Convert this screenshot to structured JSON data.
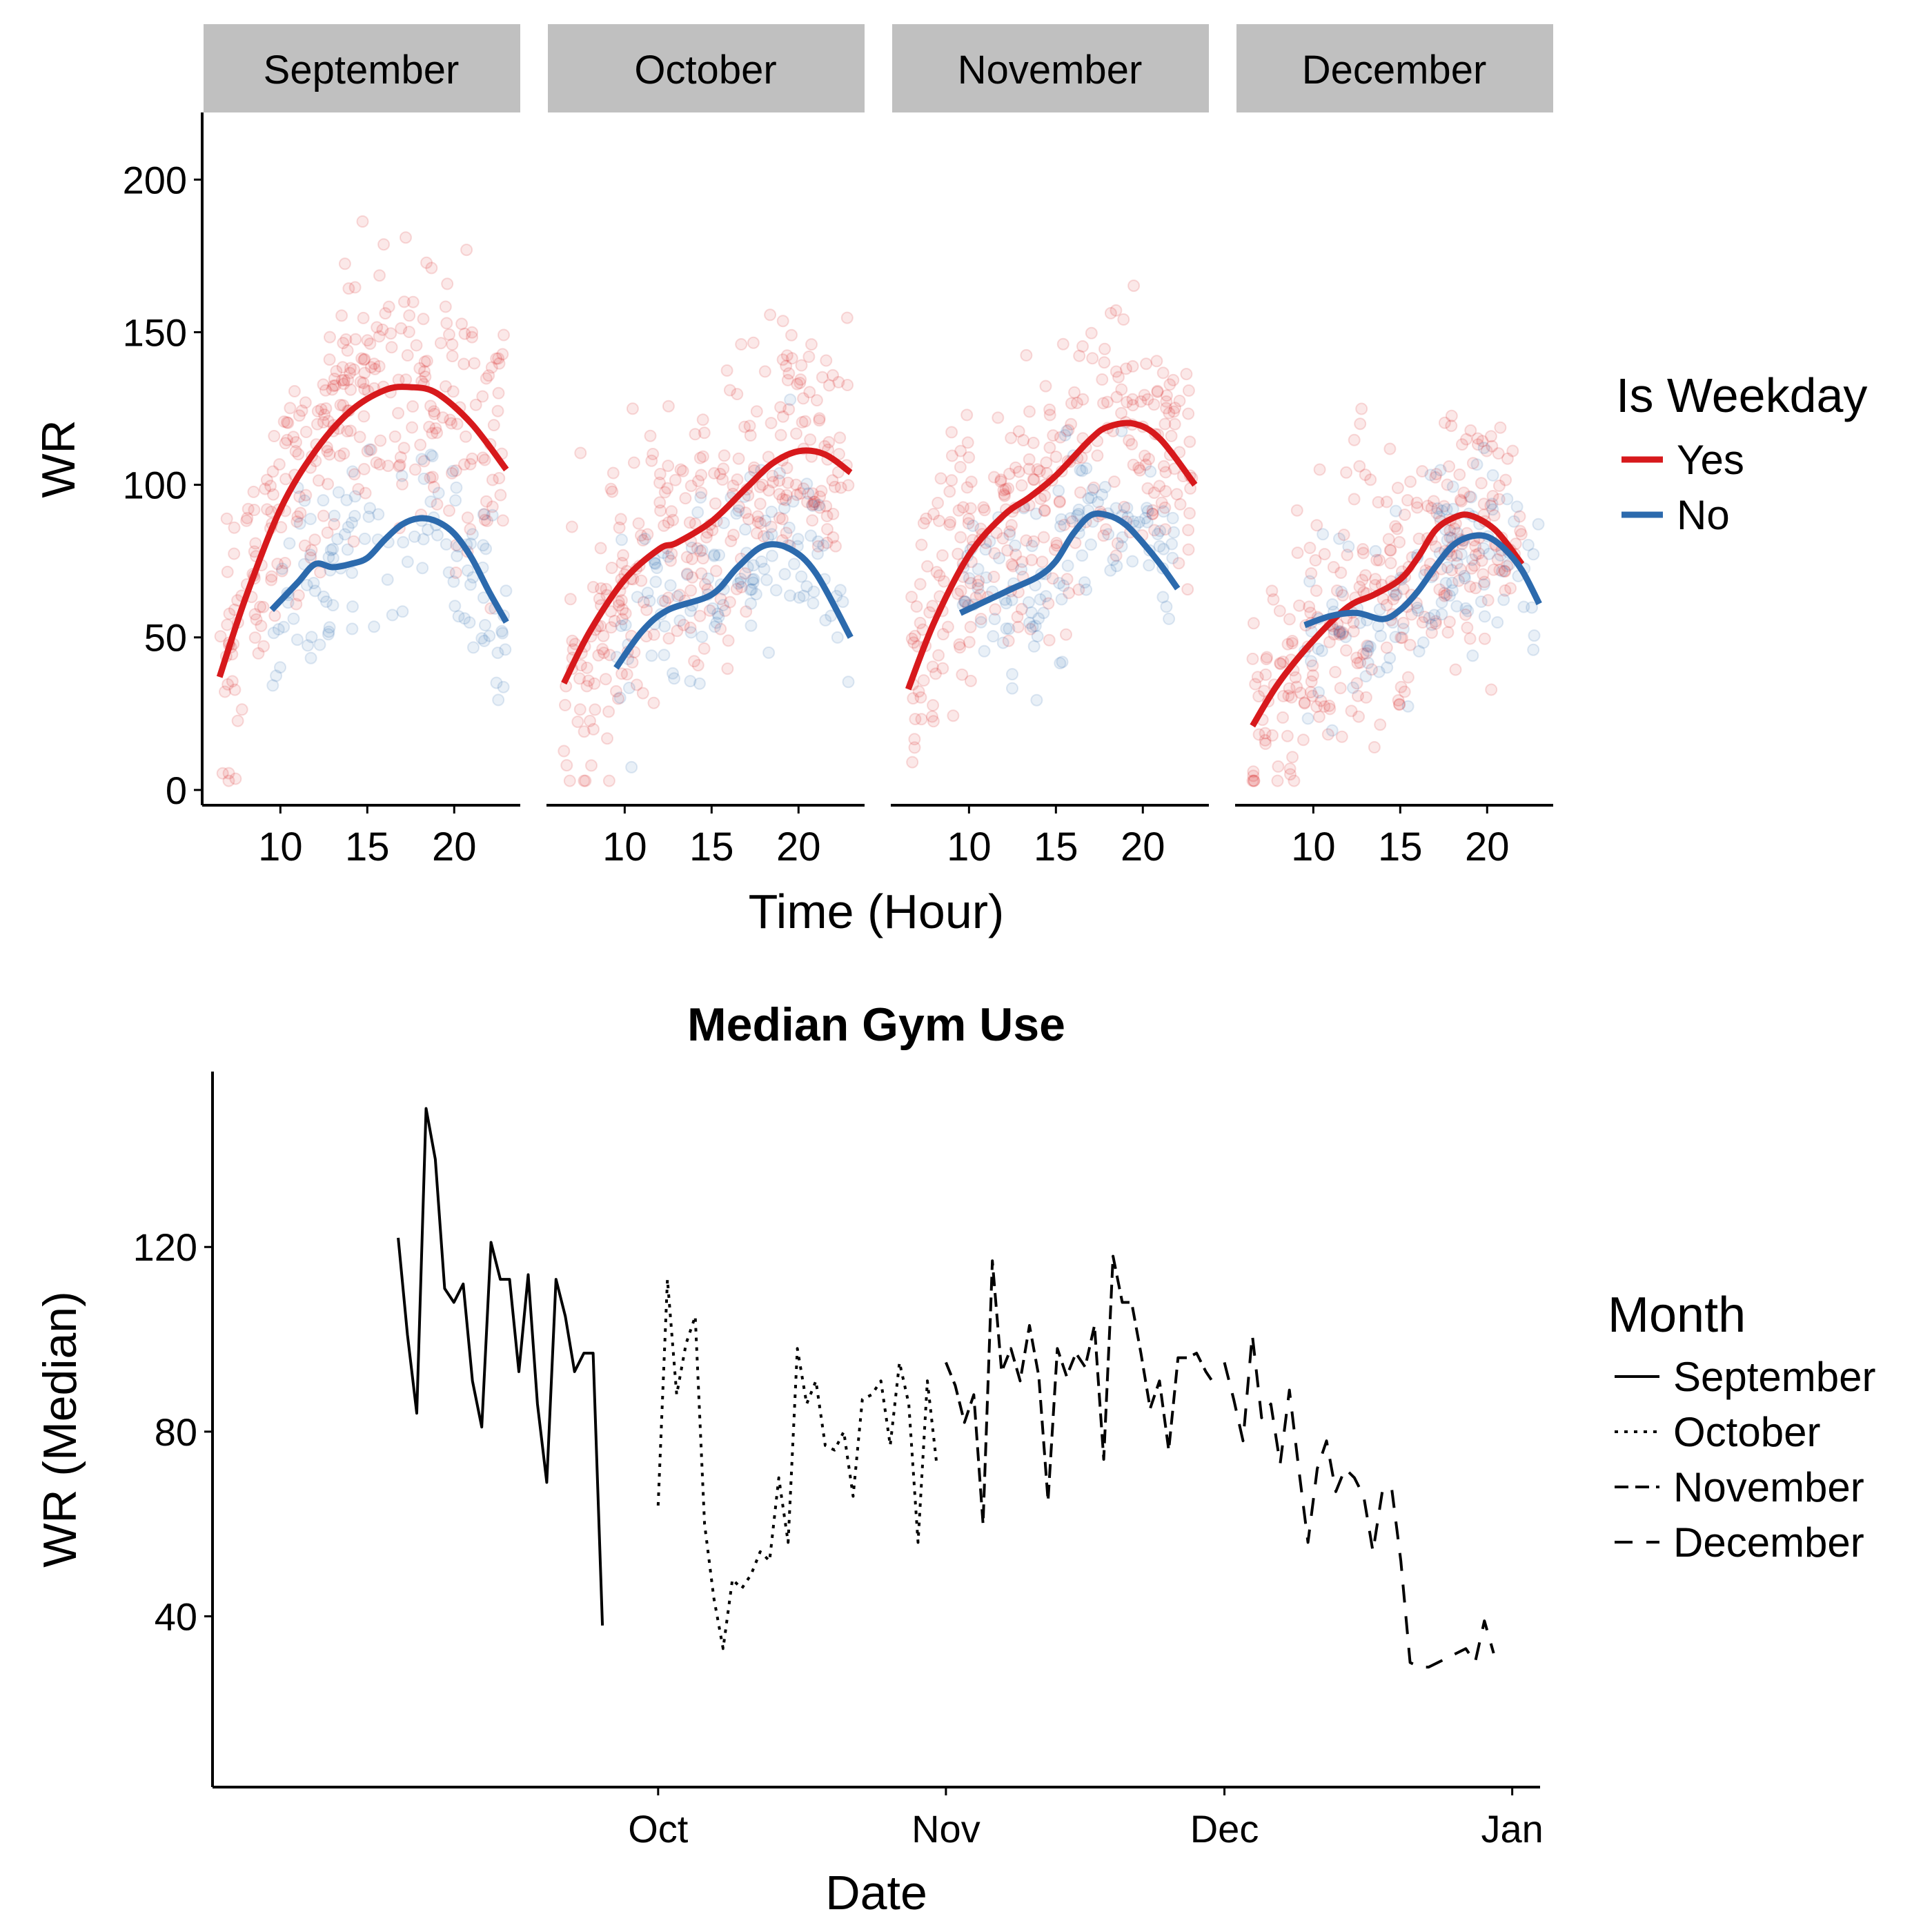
{
  "chart_data": [
    {
      "type": "scatter",
      "smooth": true,
      "facets": [
        "September",
        "October",
        "November",
        "December"
      ],
      "xlabel": "Time (Hour)",
      "ylabel": "WR",
      "xticks": [
        10,
        15,
        20
      ],
      "yticks": [
        0,
        50,
        100,
        150,
        200
      ],
      "xlim": [
        5.5,
        23.8
      ],
      "ylim": [
        -5,
        222
      ],
      "grid": false,
      "legend_position": "right",
      "legend": {
        "title": "Is Weekday",
        "entries": [
          {
            "label": "Yes",
            "color": "#d7191c"
          },
          {
            "label": "No",
            "color": "#2c6aad"
          }
        ]
      },
      "point_opacity": 0.1,
      "curves": {
        "September": {
          "Yes": [
            [
              6.5,
              37
            ],
            [
              8,
              63
            ],
            [
              10,
              92
            ],
            [
              12,
              111
            ],
            [
              14,
              124
            ],
            [
              16,
              131
            ],
            [
              17.5,
              132
            ],
            [
              19,
              130
            ],
            [
              21,
              120
            ],
            [
              23,
              105
            ]
          ],
          "No": [
            [
              9.5,
              59
            ],
            [
              11,
              68
            ],
            [
              12,
              74
            ],
            [
              13,
              73
            ],
            [
              14,
              74
            ],
            [
              15,
              76
            ],
            [
              16,
              82
            ],
            [
              17,
              87
            ],
            [
              18,
              89
            ],
            [
              19,
              88
            ],
            [
              20,
              84
            ],
            [
              21,
              76
            ],
            [
              22,
              65
            ],
            [
              23,
              55
            ]
          ]
        },
        "October": {
          "Yes": [
            [
              6.5,
              35
            ],
            [
              8,
              52
            ],
            [
              10,
              69
            ],
            [
              12,
              79
            ],
            [
              13,
              81
            ],
            [
              15,
              88
            ],
            [
              17,
              99
            ],
            [
              18.5,
              107
            ],
            [
              20,
              111
            ],
            [
              21.5,
              110
            ],
            [
              23,
              104
            ]
          ],
          "No": [
            [
              9.5,
              40
            ],
            [
              11,
              52
            ],
            [
              12.5,
              59
            ],
            [
              15,
              64
            ],
            [
              16.5,
              73
            ],
            [
              18,
              80
            ],
            [
              19.5,
              79
            ],
            [
              21,
              71
            ],
            [
              23,
              50
            ]
          ]
        },
        "November": {
          "Yes": [
            [
              6.5,
              33
            ],
            [
              8,
              55
            ],
            [
              10,
              77
            ],
            [
              12,
              90
            ],
            [
              13.5,
              96
            ],
            [
              15,
              103
            ],
            [
              17,
              115
            ],
            [
              18,
              119
            ],
            [
              19.5,
              120
            ],
            [
              21,
              115
            ],
            [
              23,
              100
            ]
          ],
          "No": [
            [
              9.5,
              58
            ],
            [
              11,
              62
            ],
            [
              12.5,
              66
            ],
            [
              14,
              70
            ],
            [
              15,
              75
            ],
            [
              16,
              84
            ],
            [
              17,
              90
            ],
            [
              18,
              90
            ],
            [
              19,
              87
            ],
            [
              20,
              81
            ],
            [
              21,
              74
            ],
            [
              22,
              66
            ]
          ]
        },
        "December": {
          "Yes": [
            [
              6.5,
              21
            ],
            [
              8,
              35
            ],
            [
              10,
              49
            ],
            [
              12,
              60
            ],
            [
              13.5,
              64
            ],
            [
              15,
              69
            ],
            [
              16,
              76
            ],
            [
              17,
              85
            ],
            [
              18,
              89
            ],
            [
              19,
              90
            ],
            [
              20.5,
              85
            ],
            [
              22,
              74
            ]
          ],
          "No": [
            [
              9.5,
              54
            ],
            [
              11,
              57
            ],
            [
              12.5,
              58
            ],
            [
              14,
              56
            ],
            [
              15,
              59
            ],
            [
              16,
              65
            ],
            [
              17,
              73
            ],
            [
              18,
              80
            ],
            [
              19,
              83
            ],
            [
              20,
              83
            ],
            [
              21,
              79
            ],
            [
              22,
              72
            ],
            [
              23,
              61
            ]
          ]
        }
      }
    },
    {
      "type": "line",
      "title": "Median Gym Use",
      "xlabel": "Date",
      "ylabel": "WR (Median)",
      "xlim": [
        "2016-08-14",
        "2017-01-04"
      ],
      "ylim": [
        3,
        158
      ],
      "xticks": [
        {
          "date": "2016-10-01",
          "label": "Oct"
        },
        {
          "date": "2016-11-01",
          "label": "Nov"
        },
        {
          "date": "2016-12-01",
          "label": "Dec"
        },
        {
          "date": "2017-01-01",
          "label": "Jan"
        }
      ],
      "yticks": [
        40,
        80,
        120
      ],
      "grid": false,
      "legend_position": "right",
      "legend": {
        "title": "Month"
      },
      "series": [
        {
          "name": "September",
          "dash": "solid",
          "x": [
            "2016-09-03",
            "2016-09-04",
            "2016-09-05",
            "2016-09-06",
            "2016-09-07",
            "2016-09-08",
            "2016-09-09",
            "2016-09-10",
            "2016-09-11",
            "2016-09-12",
            "2016-09-13",
            "2016-09-14",
            "2016-09-15",
            "2016-09-16",
            "2016-09-17",
            "2016-09-18",
            "2016-09-19",
            "2016-09-20",
            "2016-09-21",
            "2016-09-22",
            "2016-09-23",
            "2016-09-24",
            "2016-09-25",
            "2016-09-26",
            "2016-09-27",
            "2016-09-28",
            "2016-09-29",
            "2016-09-30"
          ],
          "values": [
            122,
            101,
            84,
            150,
            139,
            111,
            108,
            112,
            91,
            81,
            121,
            113,
            113,
            93,
            114,
            86,
            69,
            113,
            105,
            93,
            97,
            97,
            38,
            null,
            null,
            null,
            null,
            null
          ]
        },
        {
          "name": "October",
          "dash": "dotted",
          "x": [
            "2016-10-01",
            "2016-10-02",
            "2016-10-03",
            "2016-10-04",
            "2016-10-05",
            "2016-10-06",
            "2016-10-07",
            "2016-10-08",
            "2016-10-09",
            "2016-10-10",
            "2016-10-11",
            "2016-10-12",
            "2016-10-13",
            "2016-10-14",
            "2016-10-15",
            "2016-10-16",
            "2016-10-17",
            "2016-10-18",
            "2016-10-19",
            "2016-10-20",
            "2016-10-21",
            "2016-10-22",
            "2016-10-23",
            "2016-10-24",
            "2016-10-25",
            "2016-10-26",
            "2016-10-27",
            "2016-10-28",
            "2016-10-29",
            "2016-10-30",
            "2016-10-31"
          ],
          "values": [
            64,
            113,
            88,
            99,
            105,
            60,
            44,
            33,
            48,
            46,
            49,
            54,
            52,
            70,
            56,
            98,
            86,
            91,
            77,
            76,
            80,
            66,
            87,
            88,
            91,
            77,
            95,
            86,
            56,
            91,
            73
          ]
        },
        {
          "name": "November",
          "dash": "dashed",
          "x": [
            "2016-11-01",
            "2016-11-02",
            "2016-11-03",
            "2016-11-04",
            "2016-11-05",
            "2016-11-06",
            "2016-11-07",
            "2016-11-08",
            "2016-11-09",
            "2016-11-10",
            "2016-11-11",
            "2016-11-12",
            "2016-11-13",
            "2016-11-14",
            "2016-11-15",
            "2016-11-16",
            "2016-11-17",
            "2016-11-18",
            "2016-11-19",
            "2016-11-20",
            "2016-11-21",
            "2016-11-22",
            "2016-11-23",
            "2016-11-24",
            "2016-11-25",
            "2016-11-26",
            "2016-11-27",
            "2016-11-28",
            "2016-11-29",
            "2016-11-30"
          ],
          "values": [
            95,
            90,
            82,
            88,
            60,
            117,
            93,
            98,
            91,
            103,
            92,
            65,
            98,
            92,
            97,
            94,
            103,
            74,
            118,
            108,
            108,
            97,
            85,
            91,
            76,
            96,
            96,
            97,
            93,
            90
          ]
        },
        {
          "name": "December",
          "dash": "longdash",
          "x": [
            "2016-12-01",
            "2016-12-02",
            "2016-12-03",
            "2016-12-04",
            "2016-12-05",
            "2016-12-06",
            "2016-12-07",
            "2016-12-08",
            "2016-12-09",
            "2016-12-10",
            "2016-12-11",
            "2016-12-12",
            "2016-12-13",
            "2016-12-14",
            "2016-12-15",
            "2016-12-16",
            "2016-12-17",
            "2016-12-18",
            "2016-12-19",
            "2016-12-20",
            "2016-12-21",
            "2016-12-22",
            "2016-12-23",
            "2016-12-24",
            "2016-12-25",
            "2016-12-26",
            "2016-12-27",
            "2016-12-28",
            "2016-12-29",
            "2016-12-30"
          ],
          "values": [
            95,
            87,
            78,
            101,
            83,
            86,
            73,
            89,
            72,
            56,
            72,
            78,
            67,
            72,
            70,
            66,
            54,
            67,
            68,
            52,
            30,
            29,
            29,
            30,
            31,
            32,
            33,
            30,
            39,
            32
          ]
        }
      ]
    }
  ]
}
